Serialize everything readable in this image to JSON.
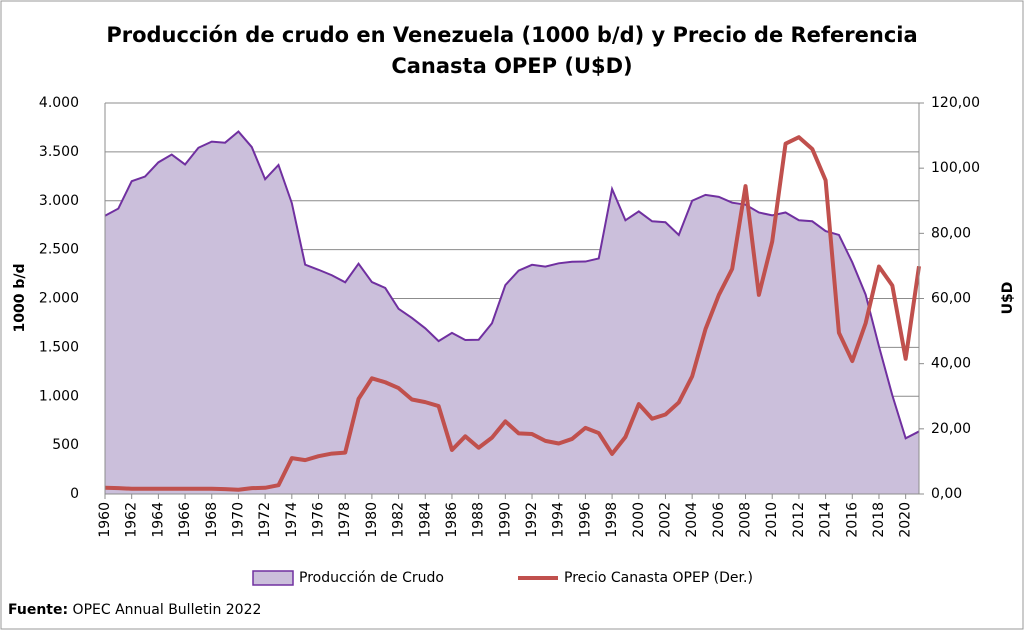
{
  "chart_data": {
    "type": "area-line",
    "title": [
      "Producción de crudo en Venezuela (1000 b/d) y Precio de Referencia",
      "Canasta OPEP (U$D)"
    ],
    "ylabel": "1000 b/d",
    "y2label": "U$D",
    "source_label": "Fuente:",
    "source_text": "OPEC Annual Bulletin 2022",
    "x": [
      1960,
      1961,
      1962,
      1963,
      1964,
      1965,
      1966,
      1967,
      1968,
      1969,
      1970,
      1971,
      1972,
      1973,
      1974,
      1975,
      1976,
      1977,
      1978,
      1979,
      1980,
      1981,
      1982,
      1983,
      1984,
      1985,
      1986,
      1987,
      1988,
      1989,
      1990,
      1991,
      1992,
      1993,
      1994,
      1995,
      1996,
      1997,
      1998,
      1999,
      2000,
      2001,
      2002,
      2003,
      2004,
      2005,
      2006,
      2007,
      2008,
      2009,
      2010,
      2011,
      2012,
      2013,
      2014,
      2015,
      2016,
      2017,
      2018,
      2019,
      2020,
      2021
    ],
    "xlim": [
      1960,
      2021
    ],
    "xticks": [
      1960,
      1962,
      1964,
      1966,
      1968,
      1970,
      1972,
      1974,
      1976,
      1978,
      1980,
      1982,
      1984,
      1986,
      1988,
      1990,
      1992,
      1994,
      1996,
      1998,
      2000,
      2002,
      2004,
      2006,
      2008,
      2010,
      2012,
      2014,
      2016,
      2018,
      2020
    ],
    "ylim": [
      0,
      4000
    ],
    "yticks": [
      0,
      500,
      {
        "value": 1000,
        "label": "1.000"
      },
      {
        "value": 1500,
        "label": "1.500"
      },
      {
        "value": 2000,
        "label": "2.000"
      },
      {
        "value": 2500,
        "label": "2.500"
      },
      {
        "value": 3000,
        "label": "3.000"
      },
      {
        "value": 3500,
        "label": "3.500"
      },
      {
        "value": 4000,
        "label": "4.000"
      }
    ],
    "y2lim": [
      0,
      120
    ],
    "y2ticks": [
      {
        "value": 0,
        "label": "0,00"
      },
      {
        "value": 20,
        "label": "20,00"
      },
      {
        "value": 40,
        "label": "40,00"
      },
      {
        "value": 60,
        "label": "60,00"
      },
      {
        "value": 80,
        "label": "80,00"
      },
      {
        "value": 100,
        "label": "100,00"
      },
      {
        "value": 120,
        "label": "120,00"
      }
    ],
    "grid": true,
    "series": [
      {
        "name": "Producción de Crudo",
        "kind": "area",
        "color": "#cbbfdb",
        "edge": "#7030a0",
        "values": [
          2846,
          2920,
          3200,
          3248,
          3393,
          3473,
          3371,
          3542,
          3605,
          3594,
          3708,
          3549,
          3220,
          3366,
          2976,
          2346,
          2294,
          2238,
          2166,
          2356,
          2168,
          2108,
          1895,
          1801,
          1695,
          1564,
          1648,
          1575,
          1578,
          1747,
          2137,
          2286,
          2345,
          2326,
          2360,
          2376,
          2378,
          2410,
          3120,
          2800,
          2891,
          2790,
          2780,
          2650,
          3000,
          3060,
          3040,
          2980,
          2960,
          2880,
          2850,
          2880,
          2800,
          2790,
          2690,
          2650,
          2370,
          2040,
          1510,
          1010,
          570,
          640
        ]
      },
      {
        "name": "Precio Canasta OPEP (Der.)",
        "kind": "line",
        "axis": "y2",
        "color": "#c0504d",
        "values": [
          1.9,
          1.8,
          1.6,
          1.6,
          1.6,
          1.6,
          1.6,
          1.6,
          1.6,
          1.5,
          1.3,
          1.8,
          1.9,
          2.7,
          11.0,
          10.4,
          11.6,
          12.4,
          12.7,
          29.2,
          35.5,
          34.3,
          32.5,
          29.0,
          28.2,
          27.0,
          13.5,
          17.7,
          14.2,
          17.3,
          22.3,
          18.6,
          18.4,
          16.3,
          15.5,
          16.9,
          20.3,
          18.7,
          12.3,
          17.5,
          27.6,
          23.1,
          24.4,
          28.1,
          36.1,
          50.6,
          61.1,
          69.1,
          94.5,
          61.1,
          77.5,
          107.5,
          109.5,
          105.9,
          96.3,
          49.5,
          40.8,
          52.4,
          69.8,
          64.0,
          41.5,
          69.9
        ]
      }
    ]
  }
}
